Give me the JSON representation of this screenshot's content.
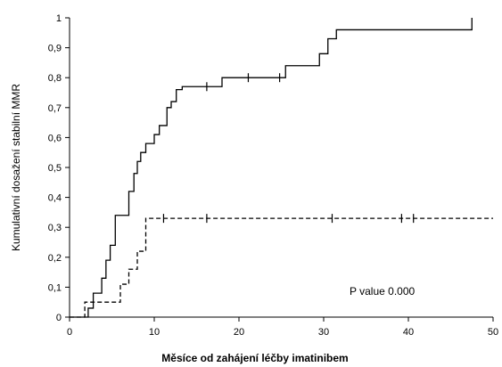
{
  "chart_data": {
    "type": "line",
    "title": "",
    "xlabel": "Měsíce od zahájení léčby imatinibem",
    "ylabel": "Kumulativní dosažení stabilní MMR",
    "xlim": [
      0,
      50
    ],
    "ylim": [
      0,
      1
    ],
    "x_ticks": [
      "0",
      "10",
      "20",
      "30",
      "40",
      "50"
    ],
    "y_ticks": [
      "0",
      "0,1",
      "0,2",
      "0,3",
      "0,4",
      "0,5",
      "0,6",
      "0,7",
      "0,8",
      "0,9",
      "1"
    ],
    "grid": false,
    "legend": "none",
    "annotation": "P value 0.000",
    "series": [
      {
        "style": "solid",
        "color": "#000000",
        "steps": [
          [
            0,
            0
          ],
          [
            2.2,
            0.03
          ],
          [
            2.8,
            0.08
          ],
          [
            3.8,
            0.13
          ],
          [
            4.3,
            0.19
          ],
          [
            4.8,
            0.24
          ],
          [
            5.4,
            0.34
          ],
          [
            7.0,
            0.42
          ],
          [
            7.6,
            0.48
          ],
          [
            8.0,
            0.52
          ],
          [
            8.4,
            0.55
          ],
          [
            9.0,
            0.58
          ],
          [
            10.0,
            0.61
          ],
          [
            10.6,
            0.64
          ],
          [
            11.5,
            0.7
          ],
          [
            12.0,
            0.72
          ],
          [
            12.6,
            0.76
          ],
          [
            13.3,
            0.77
          ],
          [
            18.0,
            0.8
          ],
          [
            25.5,
            0.84
          ],
          [
            29.5,
            0.88
          ],
          [
            30.5,
            0.93
          ],
          [
            31.5,
            0.96
          ],
          [
            47.5,
            1.0
          ]
        ],
        "censored": [
          16.2,
          21.1,
          24.8
        ]
      },
      {
        "style": "dashed",
        "color": "#000000",
        "steps": [
          [
            0,
            0
          ],
          [
            1.8,
            0.05
          ],
          [
            6.0,
            0.11
          ],
          [
            7.0,
            0.16
          ],
          [
            8.0,
            0.22
          ],
          [
            9.0,
            0.33
          ]
        ],
        "end_x": 50,
        "censored": [
          11.1,
          16.2,
          31.0,
          39.2,
          40.6
        ]
      }
    ]
  }
}
